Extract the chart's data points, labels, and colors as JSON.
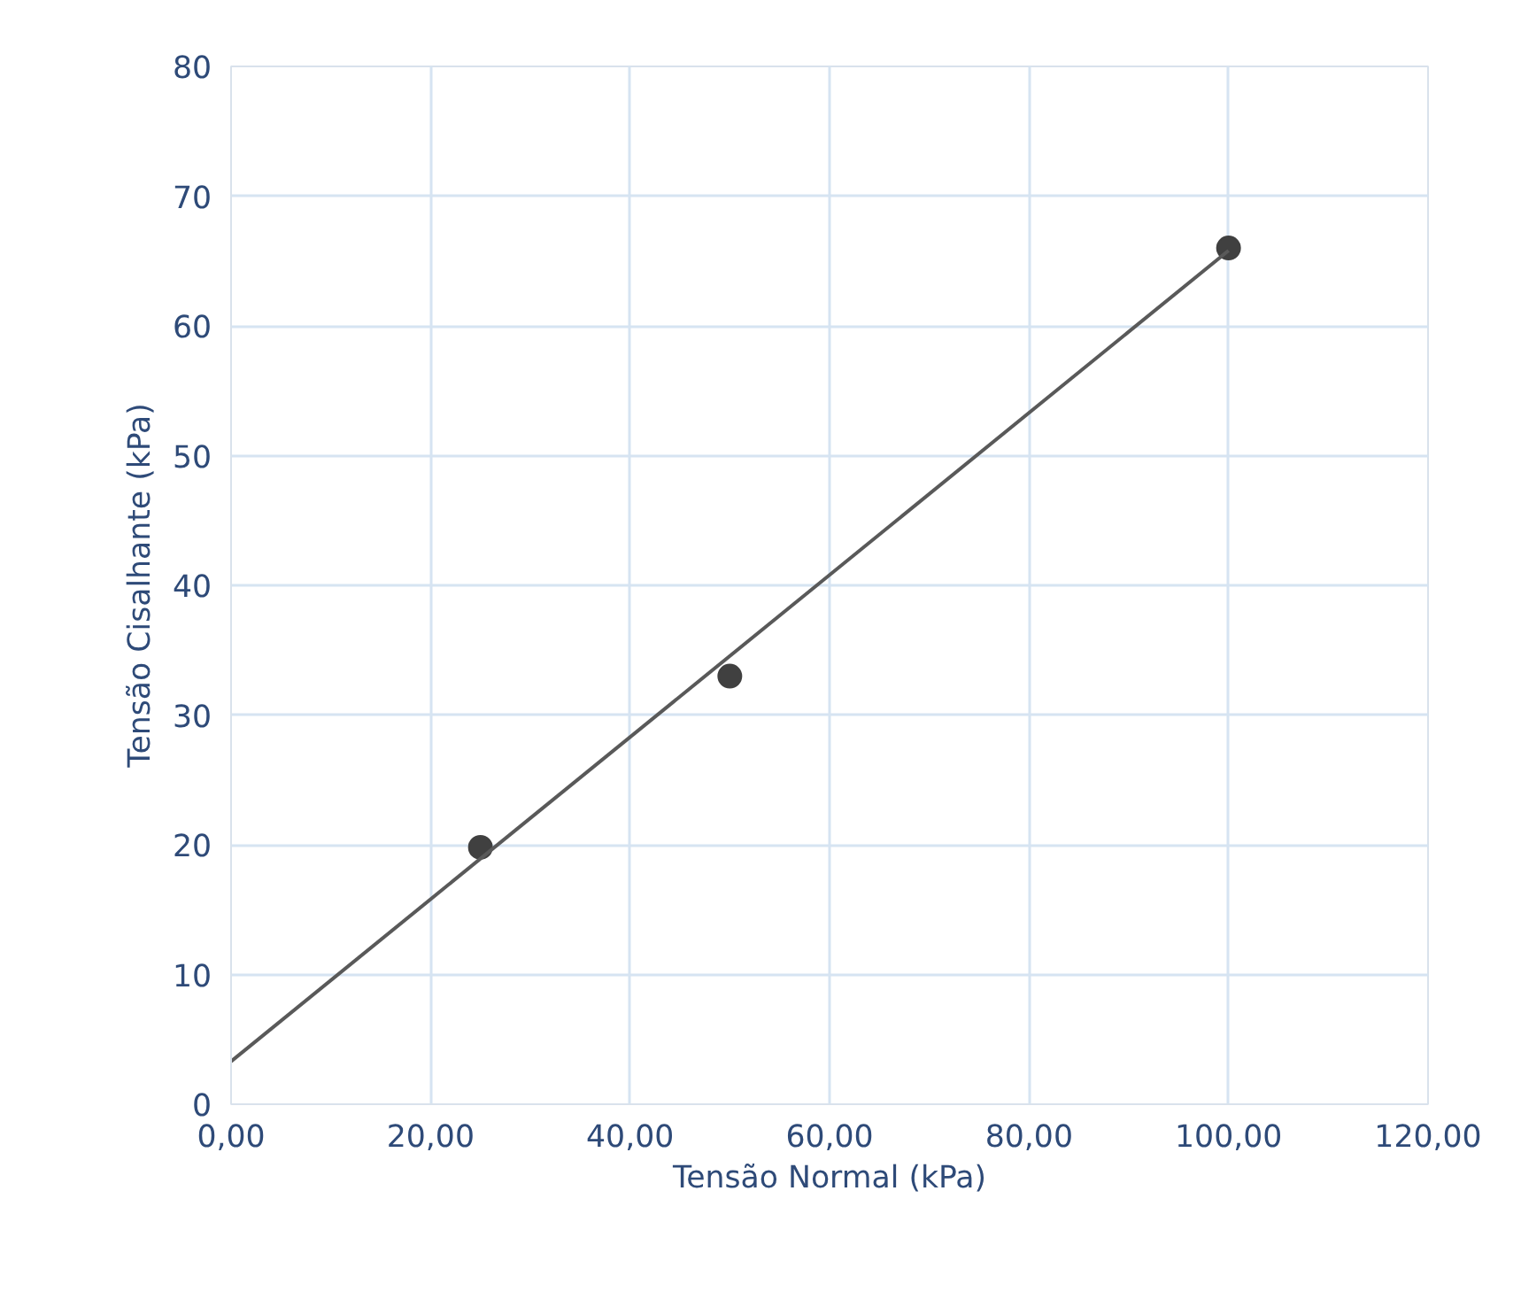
{
  "chart_data": {
    "type": "scatter",
    "xlabel": "Tensão Normal (kPa)",
    "ylabel": "Tensão Cisalhante (kPa)",
    "xlim": [
      0,
      120
    ],
    "ylim": [
      0,
      80
    ],
    "xticks": [
      {
        "value": 0,
        "label": "0,00"
      },
      {
        "value": 20,
        "label": "20,00"
      },
      {
        "value": 40,
        "label": "40,00"
      },
      {
        "value": 60,
        "label": "60,00"
      },
      {
        "value": 80,
        "label": "80,00"
      },
      {
        "value": 100,
        "label": "100,00"
      },
      {
        "value": 120,
        "label": "120,00"
      }
    ],
    "yticks": [
      0,
      10,
      20,
      30,
      40,
      50,
      60,
      70,
      80
    ],
    "grid": true,
    "series": [
      {
        "color": "#404040",
        "marker": "circle",
        "x": [
          25,
          50,
          100
        ],
        "values": [
          19.8,
          33,
          66
        ]
      },
      {
        "type": "line",
        "color": "#595959",
        "line_style": "solid",
        "x": [
          0,
          100
        ],
        "values": [
          3.3,
          65.8
        ]
      }
    ]
  }
}
